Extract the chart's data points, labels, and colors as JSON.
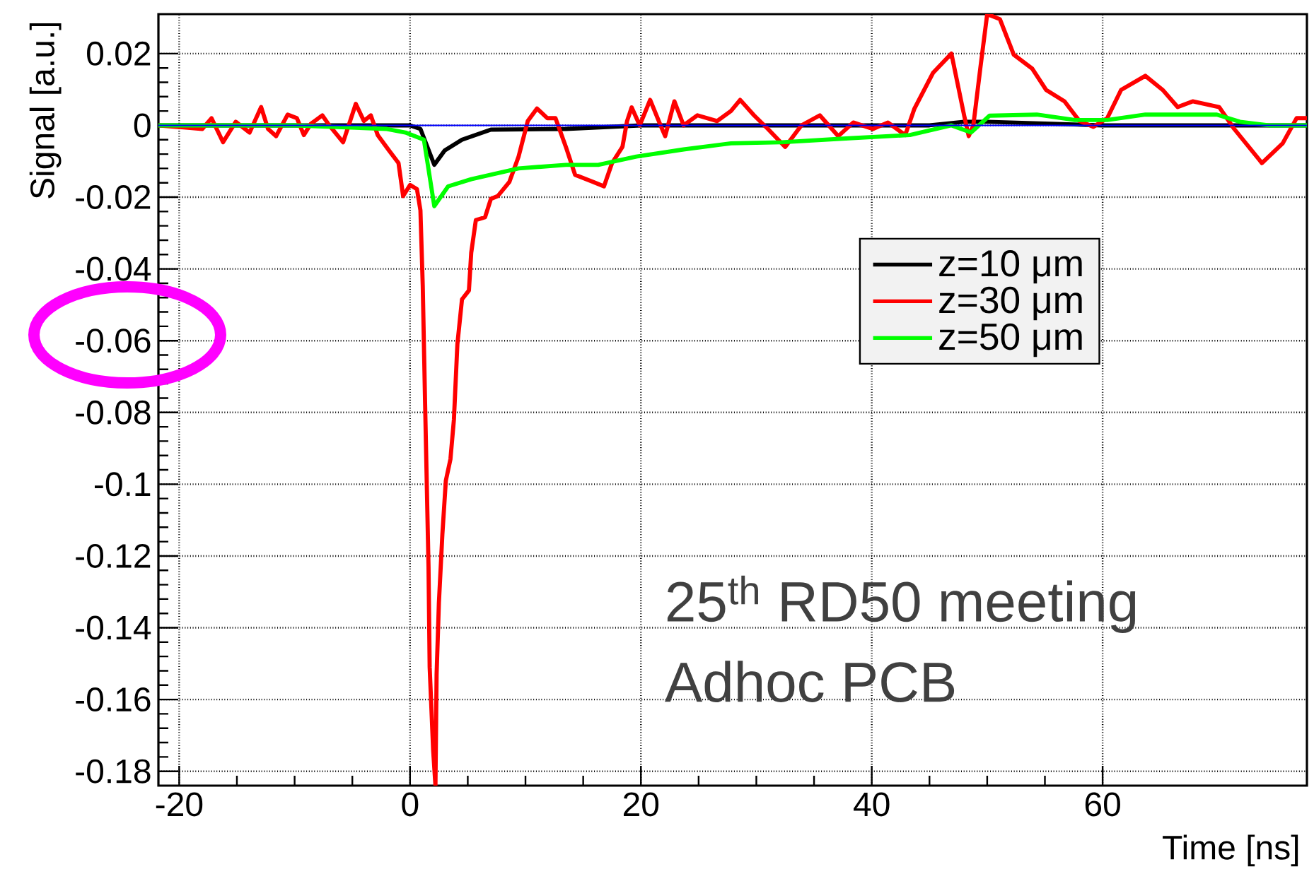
{
  "chart_data": {
    "type": "line",
    "xlabel": "Time [ns]",
    "ylabel": "Signal [a.u.]",
    "annotations": [
      "25$^{th}$ RD50 meeting",
      "Adhoc PCB"
    ],
    "xlim": [
      -21.8,
      77.7
    ],
    "ylim": [
      -0.184,
      0.031
    ],
    "xticks": [
      -20,
      0,
      20,
      40,
      60
    ],
    "yticks": [
      -0.18,
      -0.16,
      -0.14,
      -0.12,
      -0.1,
      -0.08,
      -0.06,
      -0.04,
      -0.02,
      0,
      0.02
    ],
    "grid": true,
    "legend": "right",
    "marker": "none",
    "line_style": "solid",
    "ref_lines": [
      {
        "axis": "y",
        "value": 0,
        "color": "#0000ff"
      }
    ],
    "series": [
      {
        "name": "z=10 μm",
        "color": "#000000",
        "x": [
          -21.8,
          -10,
          0,
          0.9,
          2.1,
          3.0,
          4.5,
          7,
          13.5,
          20,
          30,
          40,
          45,
          48,
          50,
          55,
          60,
          65,
          70,
          77.7
        ],
        "values": [
          0,
          0,
          0,
          -0.001,
          -0.011,
          -0.007,
          -0.004,
          -0.0012,
          -0.001,
          0,
          0,
          0,
          0,
          0.001,
          0.001,
          0.0005,
          0,
          0,
          0,
          0
        ]
      },
      {
        "name": "z=30 μm",
        "color": "#ff0000",
        "x": [
          -21.8,
          -18,
          -17.2,
          -16.2,
          -15.1,
          -13.9,
          -12.9,
          -12.3,
          -11.6,
          -10.6,
          -9.8,
          -9.2,
          -8.6,
          -7.6,
          -7,
          -5.8,
          -4.7,
          -4,
          -3.4,
          -2.8,
          -1.8,
          -1,
          -0.6,
          0,
          0.6,
          0.9,
          1.1,
          1.3,
          1.6,
          1.7,
          2,
          2.2,
          2.3,
          2.5,
          2.8,
          3.1,
          3.5,
          3.8,
          4.1,
          4.5,
          5.1,
          5.3,
          5.7,
          6.5,
          7,
          7.6,
          8.6,
          9.4,
          10.2,
          11,
          11.9,
          12.6,
          13.5,
          14.3,
          15.9,
          16.8,
          17.5,
          18.4,
          18.8,
          19.2,
          19.9,
          20.8,
          21.7,
          22.1,
          22.9,
          23.7,
          24.9,
          26.6,
          27.8,
          28.6,
          29.8,
          31,
          32.5,
          33.9,
          35.5,
          37.1,
          38.4,
          40.1,
          41.4,
          42.9,
          43.7,
          45.3,
          46.9,
          48,
          48.4,
          48.8,
          49.4,
          50,
          51.1,
          52.3,
          53.9,
          55.1,
          56.7,
          58,
          59.2,
          60.4,
          61.6,
          63.7,
          65.2,
          66.5,
          67.8,
          70.1,
          71.4,
          73.8,
          75.6,
          76.8,
          77.7
        ],
        "values": [
          0,
          -0.001,
          0.002,
          -0.0047,
          0.001,
          -0.002,
          0.0051,
          -0.001,
          -0.003,
          0.003,
          0.002,
          -0.0027,
          0.0004,
          0.0028,
          0,
          -0.0047,
          0.006,
          0.0012,
          0.0028,
          -0.0027,
          -0.0071,
          -0.0105,
          -0.0197,
          -0.0166,
          -0.0178,
          -0.0237,
          -0.0446,
          -0.077,
          -0.123,
          -0.151,
          -0.174,
          -0.184,
          -0.153,
          -0.133,
          -0.114,
          -0.099,
          -0.093,
          -0.082,
          -0.061,
          -0.0485,
          -0.046,
          -0.0355,
          -0.0264,
          -0.0256,
          -0.0205,
          -0.0197,
          -0.0158,
          -0.0087,
          0.0012,
          0.0047,
          0.002,
          0.002,
          -0.006,
          -0.0138,
          -0.0158,
          -0.017,
          -0.0105,
          -0.006,
          0.0012,
          0.005,
          0,
          0.0071,
          0,
          -0.003,
          0.0067,
          0,
          0.0028,
          0.0012,
          0.004,
          0.0071,
          0.0028,
          -0.001,
          -0.006,
          0,
          0.0028,
          -0.003,
          0.0008,
          -0.001,
          0.0008,
          -0.0027,
          0.0047,
          0.0146,
          0.02,
          0.0028,
          -0.003,
          0,
          0.0158,
          0.031,
          0.0296,
          0.0197,
          0.0158,
          0.0099,
          0.0067,
          0.0012,
          -0.0004,
          0.002,
          0.0099,
          0.0138,
          0.0099,
          0.0051,
          0.0067,
          0.0051,
          -0.001,
          -0.0105,
          -0.005,
          0.002,
          0.002
        ]
      },
      {
        "name": "z=50 μm",
        "color": "#00ff00",
        "x": [
          -21.8,
          -10,
          -2,
          -0.4,
          1.2,
          2.1,
          3.3,
          5.3,
          9.4,
          13.5,
          16.3,
          19.6,
          23.7,
          27.8,
          32.2,
          38,
          43.3,
          46.9,
          48.6,
          50.2,
          54.3,
          57.6,
          60.4,
          63.7,
          69.9,
          71.9,
          74.4,
          77.7
        ],
        "values": [
          0,
          0,
          -0.001,
          -0.002,
          -0.004,
          -0.0225,
          -0.017,
          -0.015,
          -0.012,
          -0.011,
          -0.011,
          -0.0087,
          -0.0067,
          -0.005,
          -0.0047,
          -0.0036,
          -0.0027,
          0,
          -0.002,
          0.0027,
          0.003,
          0.0015,
          0.0015,
          0.003,
          0.003,
          0.001,
          0,
          0
        ]
      }
    ]
  }
}
